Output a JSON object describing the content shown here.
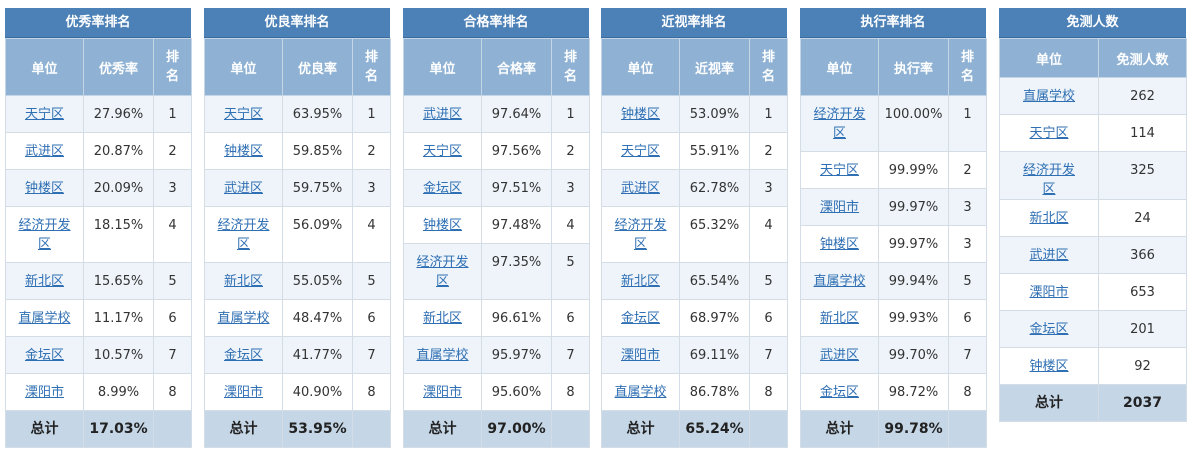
{
  "rankings": [
    {
      "title": "优秀率排名",
      "headers": [
        "单位",
        "优秀率",
        "排名"
      ],
      "rows": [
        {
          "unit": "天宁区",
          "value": "27.96%",
          "rank": "1"
        },
        {
          "unit": "武进区",
          "value": "20.87%",
          "rank": "2"
        },
        {
          "unit": "钟楼区",
          "value": "20.09%",
          "rank": "3"
        },
        {
          "unit": "经济开发区",
          "value": "18.15%",
          "rank": "4"
        },
        {
          "unit": "新北区",
          "value": "15.65%",
          "rank": "5"
        },
        {
          "unit": "直属学校",
          "value": "11.17%",
          "rank": "6"
        },
        {
          "unit": "金坛区",
          "value": "10.57%",
          "rank": "7"
        },
        {
          "unit": "溧阳市",
          "value": "8.99%",
          "rank": "8"
        }
      ],
      "total_label": "总计",
      "total_value": "17.03%"
    },
    {
      "title": "优良率排名",
      "headers": [
        "单位",
        "优良率",
        "排名"
      ],
      "rows": [
        {
          "unit": "天宁区",
          "value": "63.95%",
          "rank": "1"
        },
        {
          "unit": "钟楼区",
          "value": "59.85%",
          "rank": "2"
        },
        {
          "unit": "武进区",
          "value": "59.75%",
          "rank": "3"
        },
        {
          "unit": "经济开发区",
          "value": "56.09%",
          "rank": "4"
        },
        {
          "unit": "新北区",
          "value": "55.05%",
          "rank": "5"
        },
        {
          "unit": "直属学校",
          "value": "48.47%",
          "rank": "6"
        },
        {
          "unit": "金坛区",
          "value": "41.77%",
          "rank": "7"
        },
        {
          "unit": "溧阳市",
          "value": "40.90%",
          "rank": "8"
        }
      ],
      "total_label": "总计",
      "total_value": "53.95%"
    },
    {
      "title": "合格率排名",
      "headers": [
        "单位",
        "合格率",
        "排名"
      ],
      "rows": [
        {
          "unit": "武进区",
          "value": "97.64%",
          "rank": "1"
        },
        {
          "unit": "天宁区",
          "value": "97.56%",
          "rank": "2"
        },
        {
          "unit": "金坛区",
          "value": "97.51%",
          "rank": "3"
        },
        {
          "unit": "钟楼区",
          "value": "97.48%",
          "rank": "4"
        },
        {
          "unit": "经济开发区",
          "value": "97.35%",
          "rank": "5"
        },
        {
          "unit": "新北区",
          "value": "96.61%",
          "rank": "6"
        },
        {
          "unit": "直属学校",
          "value": "95.97%",
          "rank": "7"
        },
        {
          "unit": "溧阳市",
          "value": "95.60%",
          "rank": "8"
        }
      ],
      "total_label": "总计",
      "total_value": "97.00%"
    },
    {
      "title": "近视率排名",
      "headers": [
        "单位",
        "近视率",
        "排名"
      ],
      "rows": [
        {
          "unit": "钟楼区",
          "value": "53.09%",
          "rank": "1"
        },
        {
          "unit": "天宁区",
          "value": "55.91%",
          "rank": "2"
        },
        {
          "unit": "武进区",
          "value": "62.78%",
          "rank": "3"
        },
        {
          "unit": "经济开发区",
          "value": "65.32%",
          "rank": "4"
        },
        {
          "unit": "新北区",
          "value": "65.54%",
          "rank": "5"
        },
        {
          "unit": "金坛区",
          "value": "68.97%",
          "rank": "6"
        },
        {
          "unit": "溧阳市",
          "value": "69.11%",
          "rank": "7"
        },
        {
          "unit": "直属学校",
          "value": "86.78%",
          "rank": "8"
        }
      ],
      "total_label": "总计",
      "total_value": "65.24%"
    },
    {
      "title": "执行率排名",
      "headers": [
        "单位",
        "执行率",
        "排名"
      ],
      "rows": [
        {
          "unit": "经济开发区",
          "value": "100.00%",
          "rank": "1"
        },
        {
          "unit": "天宁区",
          "value": "99.99%",
          "rank": "2"
        },
        {
          "unit": "溧阳市",
          "value": "99.97%",
          "rank": "3"
        },
        {
          "unit": "钟楼区",
          "value": "99.97%",
          "rank": "3"
        },
        {
          "unit": "直属学校",
          "value": "99.94%",
          "rank": "5"
        },
        {
          "unit": "新北区",
          "value": "99.93%",
          "rank": "6"
        },
        {
          "unit": "武进区",
          "value": "99.70%",
          "rank": "7"
        },
        {
          "unit": "金坛区",
          "value": "98.72%",
          "rank": "8"
        }
      ],
      "total_label": "总计",
      "total_value": "99.78%"
    }
  ],
  "exempt": {
    "title": "免测人数",
    "headers": [
      "单位",
      "免测人数"
    ],
    "rows": [
      {
        "unit": "直属学校",
        "value": "262"
      },
      {
        "unit": "天宁区",
        "value": "114"
      },
      {
        "unit": "经济开发区",
        "value": "325"
      },
      {
        "unit": "新北区",
        "value": "24"
      },
      {
        "unit": "武进区",
        "value": "366"
      },
      {
        "unit": "溧阳市",
        "value": "653"
      },
      {
        "unit": "金坛区",
        "value": "201"
      },
      {
        "unit": "钟楼区",
        "value": "92"
      }
    ],
    "total_label": "总计",
    "total_value": "2037"
  }
}
